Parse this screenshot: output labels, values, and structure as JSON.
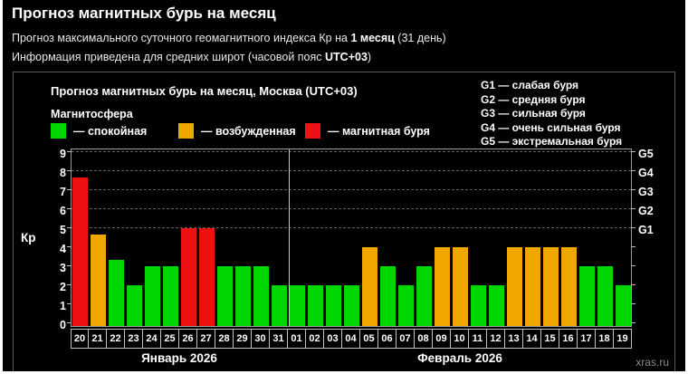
{
  "header": {
    "title": "Прогноз магнитных бурь на месяц",
    "subtitle1_prefix": "Прогноз максимального суточного геомагнитного индекса Кр на ",
    "subtitle1_bold": "1 месяц",
    "subtitle1_suffix": " (31 день)",
    "subtitle2_prefix": "Информация приведена для средних широт (часовой пояс ",
    "subtitle2_bold": "UTC+03",
    "subtitle2_suffix": ")"
  },
  "chart": {
    "title": "Прогноз магнитных бурь на месяц, Москва (UTC+03)",
    "legend_title": "Магнитосфера",
    "legend": [
      {
        "key": "quiet",
        "label": "— спокойная"
      },
      {
        "key": "excited",
        "label": "— возбужденная"
      },
      {
        "key": "storm",
        "label": "— магнитная буря"
      }
    ],
    "g_legend": [
      "G1 — слабая буря",
      "G2 — средняя буря",
      "G3 — сильная буря",
      "G4 — очень сильная буря",
      "G5 — экстремальная буря"
    ],
    "colors": {
      "quiet": "#00d600",
      "excited": "#f0a800",
      "storm": "#ee1111"
    },
    "watermark": "xras.ru"
  },
  "chart_data": {
    "type": "bar",
    "title": "Прогноз магнитных бурь на месяц, Москва (UTC+03)",
    "ylabel": "Кр",
    "ylim": [
      0,
      9
    ],
    "yticks_left": [
      0,
      1,
      2,
      3,
      4,
      5,
      6,
      7,
      8,
      9
    ],
    "gridlines_kp": [
      5,
      6,
      7,
      8,
      9
    ],
    "right_axis": [
      {
        "kp": 5,
        "label": "G1"
      },
      {
        "kp": 6,
        "label": "G2"
      },
      {
        "kp": 7,
        "label": "G3"
      },
      {
        "kp": 8,
        "label": "G4"
      },
      {
        "kp": 9,
        "label": "G5"
      }
    ],
    "categories": [
      "20",
      "21",
      "22",
      "23",
      "24",
      "25",
      "26",
      "27",
      "28",
      "29",
      "30",
      "31",
      "01",
      "02",
      "03",
      "04",
      "05",
      "06",
      "07",
      "08",
      "09",
      "10",
      "11",
      "12",
      "13",
      "14",
      "15",
      "16",
      "17",
      "18",
      "19"
    ],
    "values": [
      7.67,
      4.67,
      3.33,
      2,
      3,
      3,
      5,
      5,
      3,
      3,
      3,
      2,
      2,
      2,
      2,
      2,
      4,
      3,
      2,
      3,
      4,
      4,
      2,
      2,
      4,
      4,
      4,
      4,
      3,
      3,
      2
    ],
    "statuses": [
      "storm",
      "excited",
      "quiet",
      "quiet",
      "quiet",
      "quiet",
      "storm",
      "storm",
      "quiet",
      "quiet",
      "quiet",
      "quiet",
      "quiet",
      "quiet",
      "quiet",
      "quiet",
      "excited",
      "quiet",
      "quiet",
      "quiet",
      "excited",
      "excited",
      "quiet",
      "quiet",
      "excited",
      "excited",
      "excited",
      "excited",
      "quiet",
      "quiet",
      "quiet"
    ],
    "months": [
      {
        "label": "Январь 2026",
        "start_index": 0,
        "days": 12
      },
      {
        "label": "Февраль 2026",
        "start_index": 12,
        "days": 19
      }
    ],
    "legend_position": "top-left",
    "grid": "dashed horizontal at G-levels"
  }
}
